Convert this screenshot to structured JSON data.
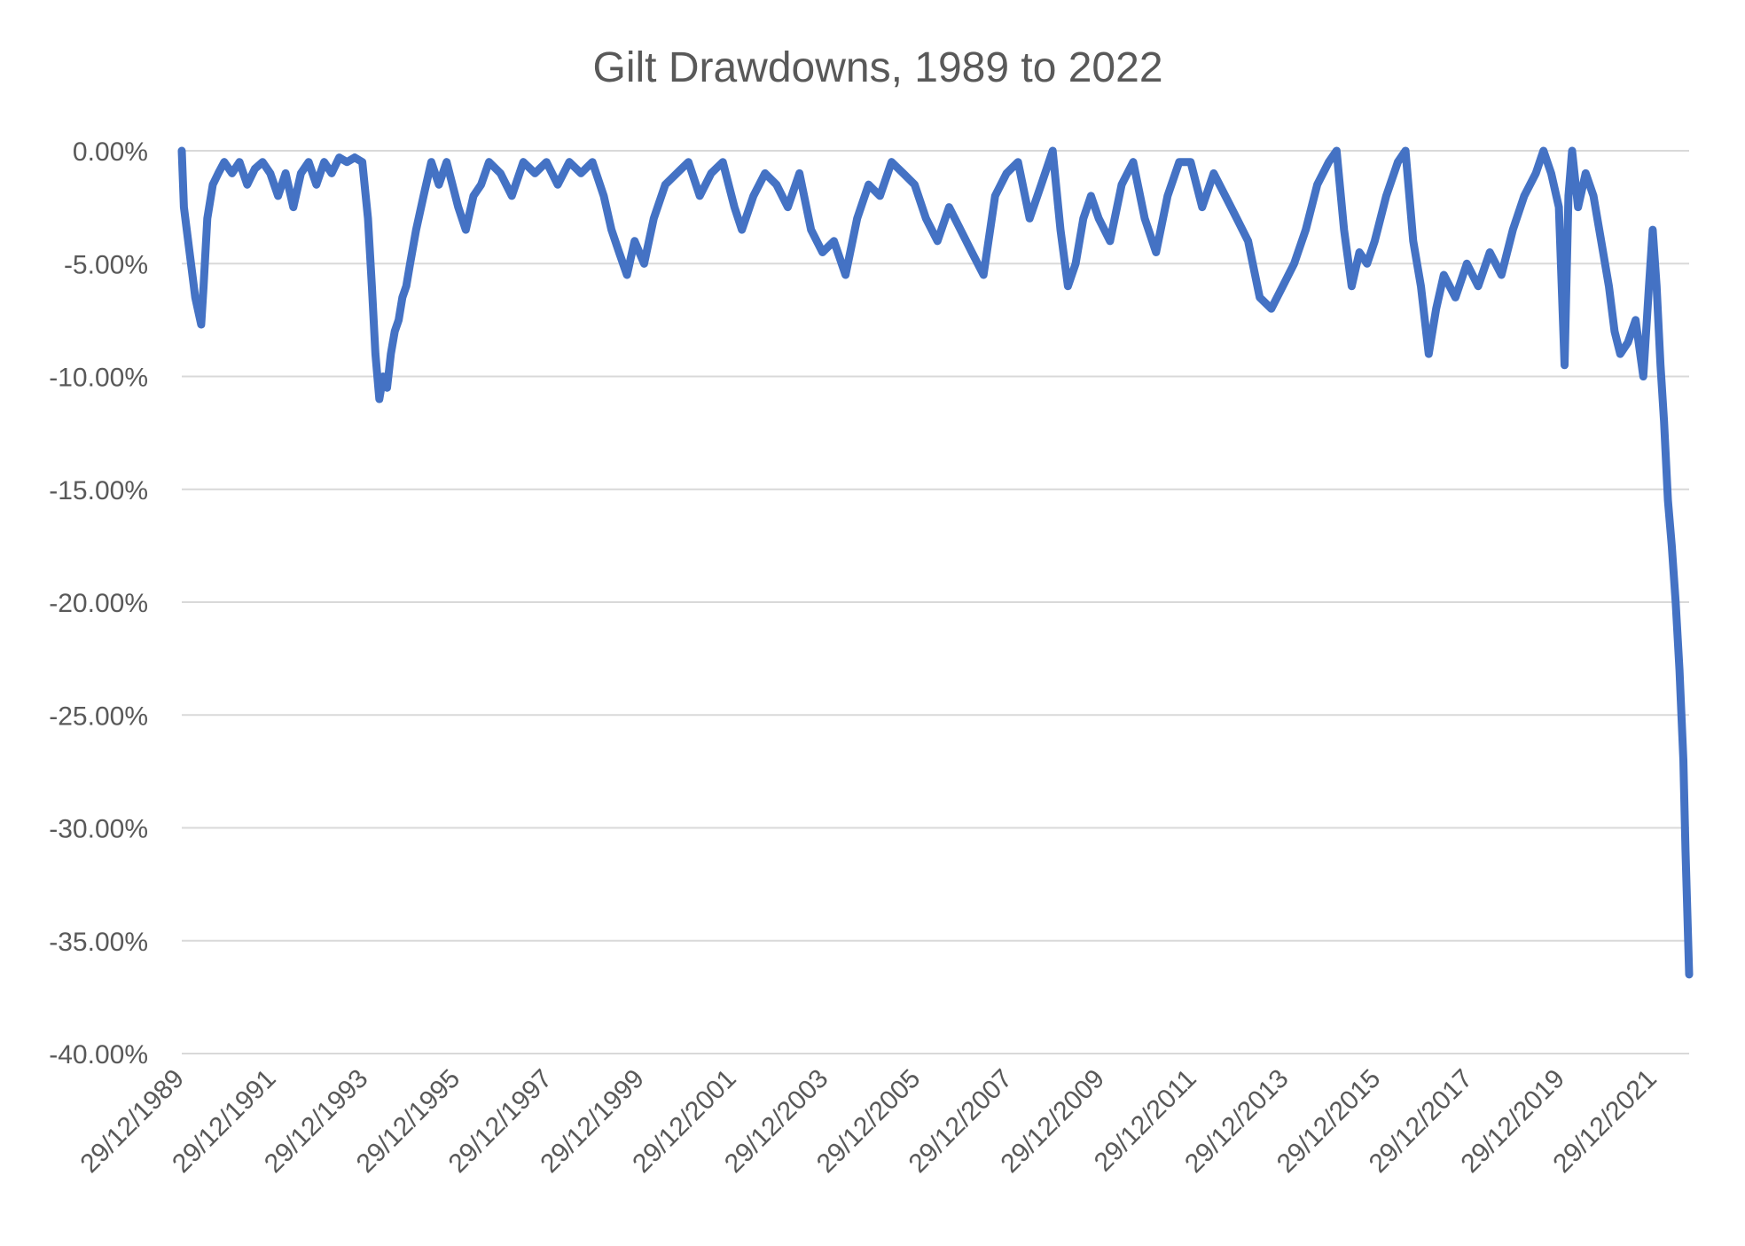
{
  "chart_data": {
    "type": "line",
    "title": "Gilt Drawdowns, 1989 to 2022",
    "xlabel": "",
    "ylabel": "",
    "x_range": [
      "29/12/1989",
      "30/09/2022"
    ],
    "ylim": [
      -40,
      0
    ],
    "y_ticks": [
      0,
      -5,
      -10,
      -15,
      -20,
      -25,
      -30,
      -35,
      -40
    ],
    "y_tick_labels": [
      "0.00%",
      "-5.00%",
      "-10.00%",
      "-15.00%",
      "-20.00%",
      "-25.00%",
      "-30.00%",
      "-35.00%",
      "-40.00%"
    ],
    "x_tick_labels": [
      "29/12/1989",
      "29/12/1991",
      "29/12/1993",
      "29/12/1995",
      "29/12/1997",
      "29/12/1999",
      "29/12/2001",
      "29/12/2003",
      "29/12/2005",
      "29/12/2007",
      "29/12/2009",
      "29/12/2011",
      "29/12/2013",
      "29/12/2015",
      "29/12/2017",
      "29/12/2019",
      "29/12/2021"
    ],
    "grid": "horizontal",
    "legend": "none",
    "colors": {
      "line": "#4472C4",
      "grid": "#D9D9D9",
      "text": "#595959"
    },
    "series": [
      {
        "points": [
          [
            "1989-12-29",
            0.0
          ],
          [
            "1990-01-15",
            -2.5
          ],
          [
            "1990-03-01",
            -4.5
          ],
          [
            "1990-04-15",
            -6.5
          ],
          [
            "1990-06-01",
            -7.7
          ],
          [
            "1990-06-20",
            -6.0
          ],
          [
            "1990-07-20",
            -3.0
          ],
          [
            "1990-09-01",
            -1.5
          ],
          [
            "1990-10-15",
            -1.0
          ],
          [
            "1990-12-01",
            -0.5
          ],
          [
            "1991-02-01",
            -1.0
          ],
          [
            "1991-04-01",
            -0.5
          ],
          [
            "1991-06-01",
            -1.5
          ],
          [
            "1991-08-01",
            -0.8
          ],
          [
            "1991-10-01",
            -0.5
          ],
          [
            "1991-12-01",
            -1.0
          ],
          [
            "1992-02-01",
            -2.0
          ],
          [
            "1992-04-01",
            -1.0
          ],
          [
            "1992-06-01",
            -2.5
          ],
          [
            "1992-08-01",
            -1.0
          ],
          [
            "1992-10-01",
            -0.5
          ],
          [
            "1992-12-01",
            -1.5
          ],
          [
            "1993-02-01",
            -0.5
          ],
          [
            "1993-04-01",
            -1.0
          ],
          [
            "1993-06-01",
            -0.3
          ],
          [
            "1993-08-01",
            -0.5
          ],
          [
            "1993-10-01",
            -0.3
          ],
          [
            "1993-12-01",
            -0.5
          ],
          [
            "1994-01-15",
            -3.0
          ],
          [
            "1994-02-15",
            -6.0
          ],
          [
            "1994-03-15",
            -9.0
          ],
          [
            "1994-04-15",
            -11.0
          ],
          [
            "1994-05-15",
            -10.0
          ],
          [
            "1994-06-15",
            -10.5
          ],
          [
            "1994-07-15",
            -9.0
          ],
          [
            "1994-08-15",
            -8.0
          ],
          [
            "1994-09-15",
            -7.5
          ],
          [
            "1994-10-15",
            -6.5
          ],
          [
            "1994-11-15",
            -6.0
          ],
          [
            "1994-12-15",
            -5.0
          ],
          [
            "1995-02-01",
            -3.5
          ],
          [
            "1995-04-01",
            -2.0
          ],
          [
            "1995-06-01",
            -0.5
          ],
          [
            "1995-08-01",
            -1.5
          ],
          [
            "1995-10-01",
            -0.5
          ],
          [
            "1996-01-01",
            -2.5
          ],
          [
            "1996-03-01",
            -3.5
          ],
          [
            "1996-05-01",
            -2.0
          ],
          [
            "1996-07-01",
            -1.5
          ],
          [
            "1996-09-01",
            -0.5
          ],
          [
            "1996-12-01",
            -1.0
          ],
          [
            "1997-03-01",
            -2.0
          ],
          [
            "1997-06-01",
            -0.5
          ],
          [
            "1997-09-01",
            -1.0
          ],
          [
            "1997-12-01",
            -0.5
          ],
          [
            "1998-03-01",
            -1.5
          ],
          [
            "1998-06-01",
            -0.5
          ],
          [
            "1998-09-01",
            -1.0
          ],
          [
            "1998-12-01",
            -0.5
          ],
          [
            "1999-03-01",
            -2.0
          ],
          [
            "1999-05-01",
            -3.5
          ],
          [
            "1999-07-01",
            -4.5
          ],
          [
            "1999-09-01",
            -5.5
          ],
          [
            "1999-11-01",
            -4.0
          ],
          [
            "2000-01-15",
            -5.0
          ],
          [
            "2000-04-01",
            -3.0
          ],
          [
            "2000-07-01",
            -1.5
          ],
          [
            "2000-10-01",
            -1.0
          ],
          [
            "2001-01-01",
            -0.5
          ],
          [
            "2001-04-01",
            -2.0
          ],
          [
            "2001-07-01",
            -1.0
          ],
          [
            "2001-10-01",
            -0.5
          ],
          [
            "2002-01-01",
            -2.5
          ],
          [
            "2002-03-01",
            -3.5
          ],
          [
            "2002-06-01",
            -2.0
          ],
          [
            "2002-09-01",
            -1.0
          ],
          [
            "2002-12-01",
            -1.5
          ],
          [
            "2003-03-01",
            -2.5
          ],
          [
            "2003-06-01",
            -1.0
          ],
          [
            "2003-09-01",
            -3.5
          ],
          [
            "2003-12-01",
            -4.5
          ],
          [
            "2004-03-01",
            -4.0
          ],
          [
            "2004-06-01",
            -5.5
          ],
          [
            "2004-09-01",
            -3.0
          ],
          [
            "2004-12-01",
            -1.5
          ],
          [
            "2005-03-01",
            -2.0
          ],
          [
            "2005-06-01",
            -0.5
          ],
          [
            "2005-09-01",
            -1.0
          ],
          [
            "2005-12-01",
            -1.5
          ],
          [
            "2006-03-01",
            -3.0
          ],
          [
            "2006-06-01",
            -4.0
          ],
          [
            "2006-09-01",
            -2.5
          ],
          [
            "2006-12-01",
            -3.5
          ],
          [
            "2007-03-01",
            -4.5
          ],
          [
            "2007-06-01",
            -5.5
          ],
          [
            "2007-09-01",
            -2.0
          ],
          [
            "2007-12-01",
            -1.0
          ],
          [
            "2008-03-01",
            -0.5
          ],
          [
            "2008-06-01",
            -3.0
          ],
          [
            "2008-09-01",
            -1.5
          ],
          [
            "2008-12-01",
            0.0
          ],
          [
            "2009-02-01",
            -3.5
          ],
          [
            "2009-04-01",
            -6.0
          ],
          [
            "2009-06-01",
            -5.0
          ],
          [
            "2009-08-01",
            -3.0
          ],
          [
            "2009-10-01",
            -2.0
          ],
          [
            "2009-12-01",
            -3.0
          ],
          [
            "2010-03-01",
            -4.0
          ],
          [
            "2010-06-01",
            -1.5
          ],
          [
            "2010-09-01",
            -0.5
          ],
          [
            "2010-12-01",
            -3.0
          ],
          [
            "2011-03-01",
            -4.5
          ],
          [
            "2011-06-01",
            -2.0
          ],
          [
            "2011-09-01",
            -0.5
          ],
          [
            "2011-12-01",
            -0.5
          ],
          [
            "2012-03-01",
            -2.5
          ],
          [
            "2012-06-01",
            -1.0
          ],
          [
            "2012-09-01",
            -2.0
          ],
          [
            "2012-12-01",
            -3.0
          ],
          [
            "2013-03-01",
            -4.0
          ],
          [
            "2013-06-01",
            -6.5
          ],
          [
            "2013-09-01",
            -7.0
          ],
          [
            "2013-12-01",
            -6.0
          ],
          [
            "2014-03-01",
            -5.0
          ],
          [
            "2014-06-01",
            -3.5
          ],
          [
            "2014-09-01",
            -1.5
          ],
          [
            "2014-12-01",
            -0.5
          ],
          [
            "2015-02-01",
            0.0
          ],
          [
            "2015-04-01",
            -3.5
          ],
          [
            "2015-06-01",
            -6.0
          ],
          [
            "2015-08-01",
            -4.5
          ],
          [
            "2015-10-01",
            -5.0
          ],
          [
            "2015-12-01",
            -4.0
          ],
          [
            "2016-03-01",
            -2.0
          ],
          [
            "2016-06-01",
            -0.5
          ],
          [
            "2016-08-01",
            0.0
          ],
          [
            "2016-10-01",
            -4.0
          ],
          [
            "2016-12-01",
            -6.0
          ],
          [
            "2017-02-01",
            -9.0
          ],
          [
            "2017-04-01",
            -7.0
          ],
          [
            "2017-06-01",
            -5.5
          ],
          [
            "2017-09-01",
            -6.5
          ],
          [
            "2017-12-01",
            -5.0
          ],
          [
            "2018-03-01",
            -6.0
          ],
          [
            "2018-06-01",
            -4.5
          ],
          [
            "2018-09-01",
            -5.5
          ],
          [
            "2018-12-01",
            -3.5
          ],
          [
            "2019-03-01",
            -2.0
          ],
          [
            "2019-06-01",
            -1.0
          ],
          [
            "2019-08-01",
            0.0
          ],
          [
            "2019-10-01",
            -1.0
          ],
          [
            "2019-12-01",
            -2.5
          ],
          [
            "2020-01-15",
            -9.5
          ],
          [
            "2020-02-15",
            -2.0
          ],
          [
            "2020-03-15",
            0.0
          ],
          [
            "2020-05-01",
            -2.5
          ],
          [
            "2020-07-01",
            -1.0
          ],
          [
            "2020-09-01",
            -2.0
          ],
          [
            "2020-11-01",
            -4.0
          ],
          [
            "2021-01-01",
            -6.0
          ],
          [
            "2021-02-15",
            -8.0
          ],
          [
            "2021-04-01",
            -9.0
          ],
          [
            "2021-06-01",
            -8.5
          ],
          [
            "2021-08-01",
            -7.5
          ],
          [
            "2021-10-01",
            -10.0
          ],
          [
            "2021-11-15",
            -6.0
          ],
          [
            "2021-12-15",
            -3.5
          ],
          [
            "2022-01-15",
            -6.0
          ],
          [
            "2022-02-15",
            -9.5
          ],
          [
            "2022-03-15",
            -12.0
          ],
          [
            "2022-04-15",
            -15.5
          ],
          [
            "2022-05-15",
            -17.5
          ],
          [
            "2022-06-15",
            -20.0
          ],
          [
            "2022-07-15",
            -23.0
          ],
          [
            "2022-08-15",
            -27.0
          ],
          [
            "2022-09-01",
            -31.0
          ],
          [
            "2022-09-30",
            -36.5
          ]
        ]
      }
    ]
  }
}
